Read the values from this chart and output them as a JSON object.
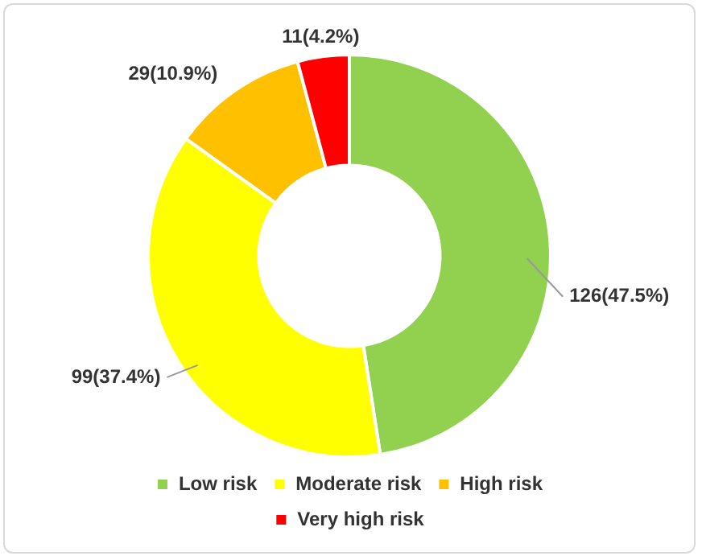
{
  "chart_data": {
    "type": "donut",
    "categories": [
      "Low risk",
      "Moderate risk",
      "High risk",
      "Very high risk"
    ],
    "values": [
      126,
      99,
      29,
      11
    ],
    "value_labels": [
      "126(47.5%)",
      "99(37.4%)",
      "29(10.9%)",
      "11(4.2%)"
    ],
    "colors": [
      "#92d050",
      "#ffff00",
      "#ffc000",
      "#ff0000"
    ],
    "legend": "bottom"
  }
}
